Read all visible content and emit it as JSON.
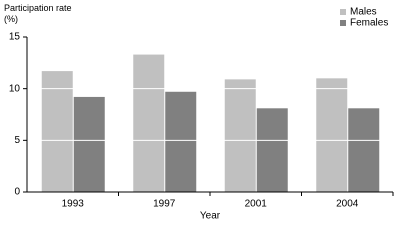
{
  "chart_data": {
    "type": "bar",
    "y_label": "Participation rate (%)",
    "x_label": "Year",
    "categories": [
      "1993",
      "1997",
      "2001",
      "2004"
    ],
    "series": [
      {
        "name": "Males",
        "color": "#c0c0c0",
        "values": [
          11.7,
          13.3,
          10.9,
          11.0
        ]
      },
      {
        "name": "Females",
        "color": "#808080",
        "values": [
          9.2,
          9.7,
          8.1,
          8.1
        ]
      }
    ],
    "ylim": [
      0,
      15
    ],
    "yticks": [
      0,
      5,
      10,
      15
    ],
    "grid": true,
    "legend": "top-right"
  }
}
